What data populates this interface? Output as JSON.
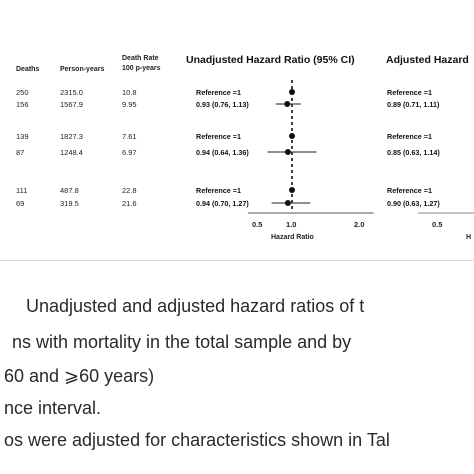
{
  "table": {
    "headers": {
      "deaths": "Deaths",
      "person_years": "Person-years",
      "death_rate_line1": "Death Rate",
      "death_rate_line2": "100 p-years",
      "unadjusted": "Unadjusted Hazard Ratio (95% CI)",
      "adjusted": "Adjusted Hazard"
    },
    "rows": [
      {
        "deaths": "250",
        "person_years": "2315.0",
        "death_rate": "10.8",
        "unadj": "Reference =1",
        "adj": "Reference =1"
      },
      {
        "deaths": "156",
        "person_years": "1567.9",
        "death_rate": "9.95",
        "unadj": "0.93 (0.76, 1.13)",
        "adj": "0.89 (0.71, 1.11)"
      },
      {
        "deaths": "139",
        "person_years": "1827.3",
        "death_rate": "7.61",
        "unadj": "Reference =1",
        "adj": "Reference =1"
      },
      {
        "deaths": "87",
        "person_years": "1248.4",
        "death_rate": "6.97",
        "unadj": "0.94 (0.64, 1.36)",
        "adj": "0.85 (0.63, 1.14)"
      },
      {
        "deaths": "111",
        "person_years": "487.8",
        "death_rate": "22.8",
        "unadj": "Reference =1",
        "adj": "Reference =1"
      },
      {
        "deaths": "69",
        "person_years": "319.5",
        "death_rate": "21.6",
        "unadj": "0.94 (0.70, 1.27)",
        "adj": "0.90 (0.63, 1.27)"
      }
    ]
  },
  "chart_data": {
    "type": "scatter",
    "xlabel": "Hazard Ratio",
    "xlim": [
      0.35,
      2.2
    ],
    "reference_line": 1.0,
    "x_ticks": [
      {
        "value": 0.5,
        "label": "0.5"
      },
      {
        "value": 1.0,
        "label": "1.0"
      },
      {
        "value": 2.0,
        "label": "2.0"
      }
    ],
    "points": [
      {
        "hr": 1.0,
        "lo": 1.0,
        "hi": 1.0
      },
      {
        "hr": 0.93,
        "lo": 0.76,
        "hi": 1.13
      },
      {
        "hr": 1.0,
        "lo": 1.0,
        "hi": 1.0
      },
      {
        "hr": 0.94,
        "lo": 0.64,
        "hi": 1.36
      },
      {
        "hr": 1.0,
        "lo": 1.0,
        "hi": 1.0
      },
      {
        "hr": 0.94,
        "lo": 0.7,
        "hi": 1.27
      }
    ],
    "adjusted_tick_label": "0.5",
    "adjusted_axis_label_fragment": "H"
  },
  "caption": {
    "line1": "Unadjusted and adjusted hazard ratios of t",
    "line2": "ns with mortality in the total sample and by",
    "line3": "60 and ⩾60 years)",
    "line4": "nce interval.",
    "line5": "os were adjusted for characteristics shown in Tal"
  }
}
